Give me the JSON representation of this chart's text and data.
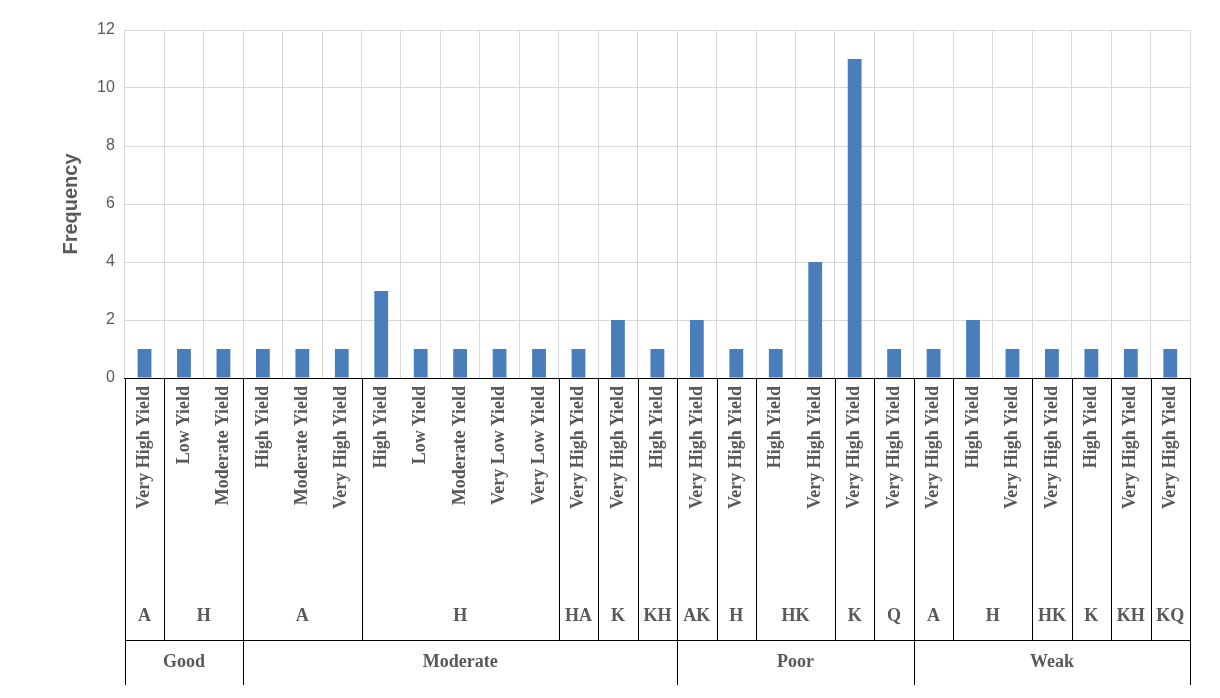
{
  "chart_data": {
    "type": "bar",
    "ylabel": "Frequency",
    "categories": [
      "Very High Yield",
      "Low Yield",
      "Moderate Yield",
      "High Yield",
      "Moderate Yield",
      "Very High Yield",
      "High Yield",
      "Low Yield",
      "Moderate Yield",
      "Very Low Yield",
      "Very Low Yield",
      "Very High Yield",
      "Very High Yield",
      "High Yield",
      "Very High Yield",
      "Very High Yield",
      "High Yield",
      "Very High Yield",
      "Very High Yield",
      "Very High Yield",
      "Very High Yield",
      "High Yield",
      "Very High Yield",
      "Very High Yield",
      "High Yield",
      "Very High Yield",
      "Very High Yield"
    ],
    "values": [
      1,
      1,
      1,
      1,
      1,
      1,
      3,
      1,
      1,
      1,
      1,
      1,
      2,
      1,
      2,
      1,
      1,
      4,
      11,
      1,
      1,
      2,
      1,
      1,
      1,
      1,
      1
    ],
    "color": "#4a7ebb",
    "ylim": [
      0,
      12
    ],
    "yticks": [
      0,
      2,
      4,
      6,
      8,
      10,
      12
    ],
    "grid": true,
    "legend": false,
    "annotations": [
      "A",
      "H",
      "A",
      "H",
      "HA",
      "K",
      "KH",
      "AK",
      "H",
      "HK",
      "K",
      "Q",
      "A",
      "H",
      "HK",
      "K",
      "KH",
      "KQ",
      "Good",
      "Moderate",
      "Poor",
      "Weak"
    ]
  }
}
